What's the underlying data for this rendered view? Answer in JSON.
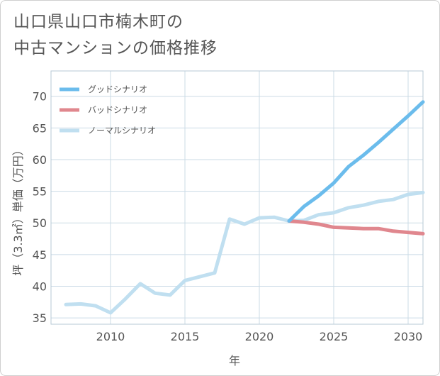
{
  "title_lines": [
    "山口県山口市楠木町の",
    "中古マンションの価格推移"
  ],
  "colors": {
    "good": "#6bbcec",
    "bad": "#e0878e",
    "normal": "#c0dff0",
    "grid": "#cbdbe6",
    "axis": "#b7c9d6"
  },
  "chart_data": {
    "type": "line",
    "xlabel": "年",
    "ylabel": "坪（3.3㎡）単価（万円）",
    "xlim": [
      2006,
      2031
    ],
    "ylim": [
      34,
      74
    ],
    "xticks": [
      2010,
      2015,
      2020,
      2025,
      2030
    ],
    "yticks": [
      35,
      40,
      45,
      50,
      55,
      60,
      65,
      70
    ],
    "grid": true,
    "legend_position": "top-left",
    "series": [
      {
        "name": "グッドシナリオ",
        "color_key": "good",
        "x": [
          2022,
          2023,
          2024,
          2025,
          2026,
          2027,
          2028,
          2029,
          2030,
          2031
        ],
        "y": [
          50.3,
          52.6,
          54.3,
          56.3,
          58.9,
          60.7,
          62.7,
          64.8,
          66.9,
          69.1
        ]
      },
      {
        "name": "バッドシナリオ",
        "color_key": "bad",
        "x": [
          2022,
          2023,
          2024,
          2025,
          2026,
          2027,
          2028,
          2029,
          2030,
          2031
        ],
        "y": [
          50.3,
          50.1,
          49.8,
          49.3,
          49.2,
          49.1,
          49.1,
          48.7,
          48.5,
          48.3
        ]
      },
      {
        "name": "ノーマルシナリオ",
        "color_key": "normal",
        "x": [
          2007,
          2008,
          2009,
          2010,
          2011,
          2012,
          2013,
          2014,
          2015,
          2016,
          2017,
          2018,
          2019,
          2020,
          2021,
          2022,
          2023,
          2024,
          2025,
          2026,
          2027,
          2028,
          2029,
          2030,
          2031
        ],
        "y": [
          37.1,
          37.2,
          36.9,
          35.8,
          38.0,
          40.4,
          38.9,
          38.6,
          40.9,
          41.5,
          42.1,
          50.6,
          49.8,
          50.8,
          50.9,
          50.3,
          50.4,
          51.3,
          51.6,
          52.4,
          52.8,
          53.4,
          53.7,
          54.5,
          54.8
        ]
      }
    ]
  }
}
